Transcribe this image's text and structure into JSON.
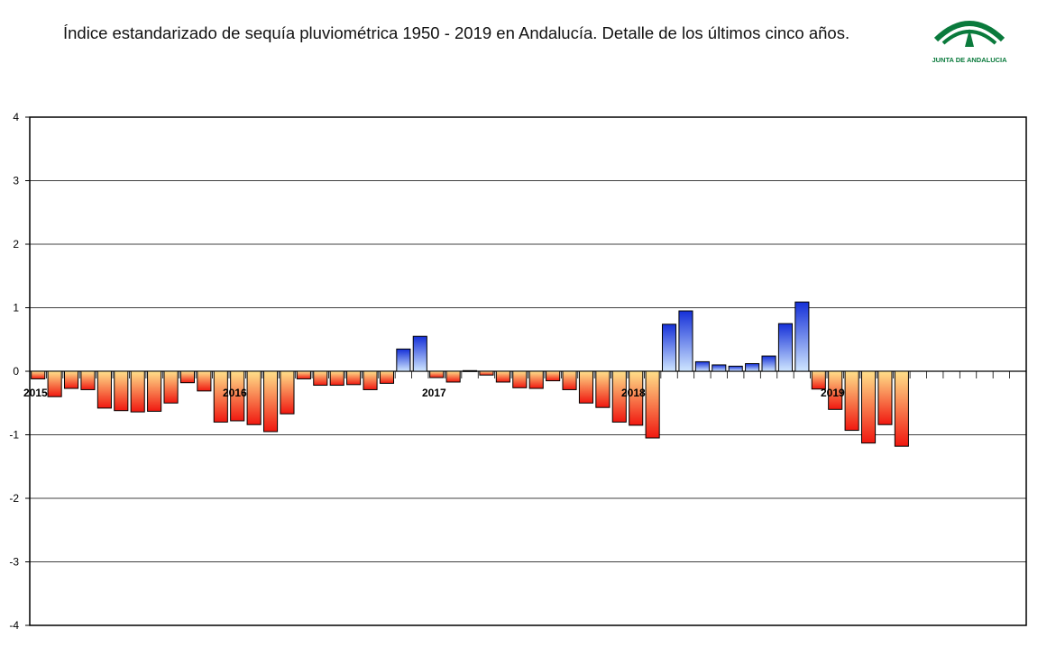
{
  "header": {
    "title": "Índice estandarizado de sequía pluviométrica 1950 - 2019 en Andalucía. Detalle de los últimos cinco años.",
    "logo_text": "JUNTA DE ANDALUCIA",
    "logo_color": "#0a7a3c"
  },
  "chart_data": {
    "type": "bar",
    "title": "Índice estandarizado de sequía pluviométrica 1950 - 2019 en Andalucía. Detalle de los últimos cinco años.",
    "xlabel": "",
    "ylabel": "",
    "ylim": [
      -4,
      4
    ],
    "yticks": [
      4,
      3,
      2,
      1,
      0,
      -1,
      -2,
      -3,
      -4
    ],
    "grid": true,
    "months_total": 60,
    "year_labels": [
      {
        "label": "2015",
        "month_index": 0
      },
      {
        "label": "2016",
        "month_index": 12
      },
      {
        "label": "2017",
        "month_index": 24
      },
      {
        "label": "2018",
        "month_index": 36
      },
      {
        "label": "2019",
        "month_index": 48
      }
    ],
    "values": [
      -0.12,
      -0.4,
      -0.27,
      -0.29,
      -0.58,
      -0.62,
      -0.64,
      -0.63,
      -0.5,
      -0.18,
      -0.31,
      -0.8,
      -0.78,
      -0.84,
      -0.95,
      -0.67,
      -0.12,
      -0.22,
      -0.22,
      -0.21,
      -0.29,
      -0.19,
      0.35,
      0.55,
      -0.1,
      -0.17,
      0.01,
      -0.06,
      -0.17,
      -0.26,
      -0.27,
      -0.15,
      -0.29,
      -0.5,
      -0.57,
      -0.8,
      -0.85,
      -1.05,
      0.74,
      0.95,
      0.15,
      0.1,
      0.08,
      0.12,
      0.24,
      0.75,
      1.09,
      -0.28,
      -0.6,
      -0.93,
      -1.13,
      -0.84,
      -1.18,
      null,
      null,
      null,
      null,
      null,
      null,
      null
    ],
    "colors": {
      "positive_top": "#1530d8",
      "positive_bottom": "#cfe6ff",
      "negative_top": "#ffe08a",
      "negative_bottom": "#f01810",
      "grid": "#000000"
    }
  }
}
